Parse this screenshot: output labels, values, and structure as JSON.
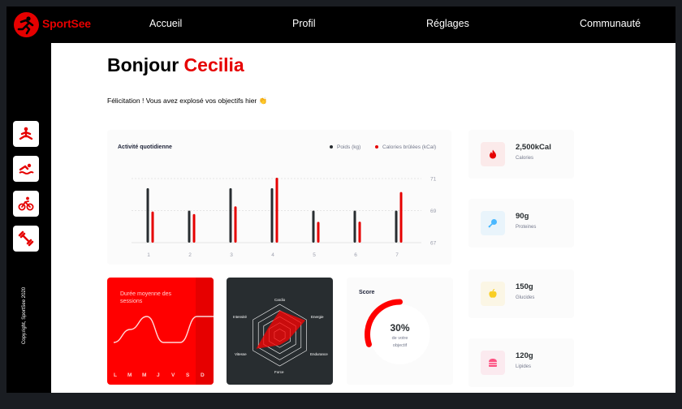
{
  "brand": {
    "name": "SportSee"
  },
  "nav": {
    "items": [
      "Accueil",
      "Profil",
      "Réglages",
      "Communauté"
    ]
  },
  "sidebar": {
    "icons": [
      "yoga-icon",
      "swimming-icon",
      "cycling-icon",
      "dumbbell-icon"
    ],
    "copyright": "Copy.right, SportSee 2020"
  },
  "greeting": {
    "hello": "Bonjour",
    "name": "Cecilia",
    "message": "Félicitation ! Vous avez explosé vos objectifs hier 👏"
  },
  "activity": {
    "title": "Activité quotidienne",
    "legend_weight": "Poids (kg)",
    "legend_calories": "Calories brûlées (kCal)"
  },
  "duration": {
    "title": "Durée moyenne des sessions",
    "days": [
      "L",
      "M",
      "M",
      "J",
      "V",
      "S",
      "D"
    ]
  },
  "radar": {
    "labels": [
      "Cardio",
      "Energie",
      "Endurance",
      "Force",
      "Vitesse",
      "Intensité"
    ]
  },
  "score": {
    "title": "Score",
    "value": "30%",
    "line1": "de votre",
    "line2": "objectif"
  },
  "key_data": [
    {
      "value": "2,500kCal",
      "label": "Calories",
      "icon": "flame-icon",
      "color": "#fbeaea",
      "accent": "#e60000"
    },
    {
      "value": "90g",
      "label": "Proteines",
      "icon": "drumstick-icon",
      "color": "#e9f4fb",
      "accent": "#4ab8ff"
    },
    {
      "value": "150g",
      "label": "Glucides",
      "icon": "apple-icon",
      "color": "#fbf6e5",
      "accent": "#f9ce23"
    },
    {
      "value": "120g",
      "label": "Lipides",
      "icon": "burger-icon",
      "color": "#fbeaef",
      "accent": "#fd5181"
    }
  ],
  "colors": {
    "accent": "#e60000",
    "dark": "#282d30"
  },
  "chart_data": [
    {
      "type": "bar",
      "title": "Activité quotidienne",
      "categories": [
        "1",
        "2",
        "3",
        "4",
        "5",
        "6",
        "7"
      ],
      "series": [
        {
          "name": "Poids (kg)",
          "values": [
            70.4,
            69,
            70.4,
            70.4,
            69,
            69,
            69
          ]
        },
        {
          "name": "Calories brûlées (kCal)",
          "values": [
            240,
            220,
            280,
            500,
            160,
            162,
            390
          ]
        }
      ],
      "yticks": [
        "67",
        "69",
        "71"
      ],
      "ylim": [
        67,
        71
      ]
    },
    {
      "type": "line",
      "title": "Durée moyenne des sessions",
      "categories": [
        "L",
        "M",
        "M",
        "J",
        "V",
        "S",
        "D"
      ],
      "values": [
        30,
        40,
        50,
        30,
        30,
        50,
        50
      ]
    },
    {
      "type": "radar",
      "categories": [
        "Cardio",
        "Energie",
        "Endurance",
        "Force",
        "Vitesse",
        "Intensité"
      ],
      "values": [
        200,
        240,
        80,
        80,
        220,
        110
      ],
      "max": 250
    },
    {
      "type": "pie",
      "title": "Score",
      "values": [
        30
      ],
      "max": 100
    }
  ]
}
